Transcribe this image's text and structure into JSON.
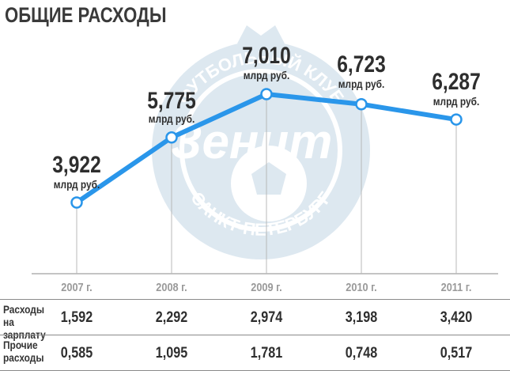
{
  "title": "ОБЩИЕ РАСХОДЫ",
  "watermark": {
    "top_text": "ФУТБОЛЬНЫЙ КЛУБ",
    "bottom_text": "САНКТ-ПЕТЕРБУРГ",
    "logo_word": "Зенит"
  },
  "chart_data": {
    "type": "line",
    "title": "ОБЩИЕ РАСХОДЫ",
    "xlabel": "",
    "ylabel": "",
    "categories": [
      "2007 г.",
      "2008 г.",
      "2009 г.",
      "2010 г.",
      "2011 г."
    ],
    "series": [
      {
        "values": [
          3.922,
          5.775,
          7.01,
          6.723,
          6.287
        ],
        "labels": [
          "3,922",
          "5,775",
          "7,010",
          "6,723",
          "6,287"
        ],
        "unit": "млрд руб."
      }
    ],
    "ylim": [
      3.0,
      7.5
    ],
    "grid": false,
    "line_color": "#2a96ea",
    "marker_fill": "#ffffff"
  },
  "table": {
    "rows": [
      {
        "label_line1": "Расходы",
        "label_line2": "на зарплату",
        "values": [
          "1,592",
          "2,292",
          "2,974",
          "3,198",
          "3,420"
        ]
      },
      {
        "label_line1": "Прочие",
        "label_line2": "расходы",
        "values": [
          "0,585",
          "1,095",
          "1,781",
          "0,748",
          "0,517"
        ]
      }
    ]
  }
}
